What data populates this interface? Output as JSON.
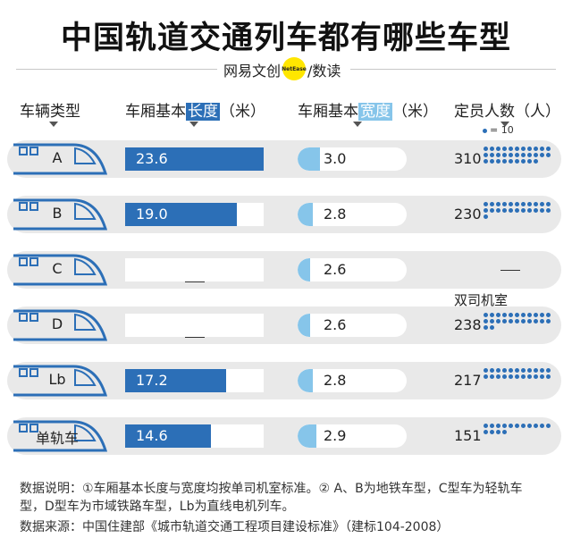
{
  "title": "中国轨道交通列车都有哪些车型",
  "brand": {
    "left": "网易文创",
    "badge": "NetEase",
    "right": "数读"
  },
  "headers": {
    "type": "车辆类型",
    "length_pre": "车厢基本",
    "length_hl": "长度",
    "length_post": "（米）",
    "width_pre": "车厢基本",
    "width_hl": "宽度",
    "width_post": "（米）",
    "capacity": "定员人数（人）"
  },
  "legend": {
    "text": "= 10"
  },
  "chart_data": {
    "type": "table",
    "title": "中国轨道交通列车都有哪些车型",
    "columns": [
      "车辆类型",
      "车厢基本长度（米）",
      "车厢基本宽度（米）",
      "定员人数（人）"
    ],
    "length_scale_max": 23.6,
    "width_scale_max": 4.0,
    "dot_unit": 10,
    "rows": [
      {
        "type": "A",
        "length": 23.6,
        "length_label": "23.6",
        "width": 3.0,
        "width_label": "3.0",
        "capacity": 310,
        "capacity_label": "310",
        "note": ""
      },
      {
        "type": "B",
        "length": 19.0,
        "length_label": "19.0",
        "width": 2.8,
        "width_label": "2.8",
        "capacity": 230,
        "capacity_label": "230",
        "note": ""
      },
      {
        "type": "C",
        "length": null,
        "length_label": "",
        "width": 2.6,
        "width_label": "2.6",
        "capacity": null,
        "capacity_label": "",
        "note": ""
      },
      {
        "type": "D",
        "length": null,
        "length_label": "",
        "width": 2.6,
        "width_label": "2.6",
        "capacity": 238,
        "capacity_label": "238",
        "note": "双司机室"
      },
      {
        "type": "Lb",
        "length": 17.2,
        "length_label": "17.2",
        "width": 2.8,
        "width_label": "2.8",
        "capacity": 217,
        "capacity_label": "217",
        "note": ""
      },
      {
        "type": "单轨车",
        "length": 14.6,
        "length_label": "14.6",
        "width": 2.9,
        "width_label": "2.9",
        "capacity": 151,
        "capacity_label": "151",
        "note": ""
      }
    ]
  },
  "footer": {
    "line1": "数据说明：①车厢基本长度与宽度均按单司机室标准。② A、B为地铁车型，C型车为轻轨车",
    "line2": "型，D型车为市域铁路车型，Lb为直线电机列车。",
    "line3": "数据来源：中国住建部《城市轨道交通工程项目建设标准》（建标104-2008）"
  },
  "colors": {
    "length": "#2c6fb7",
    "width": "#86c5ea",
    "dot": "#2c6fb7",
    "pill": "#e9e9e9",
    "train": "#2c6fb7"
  }
}
